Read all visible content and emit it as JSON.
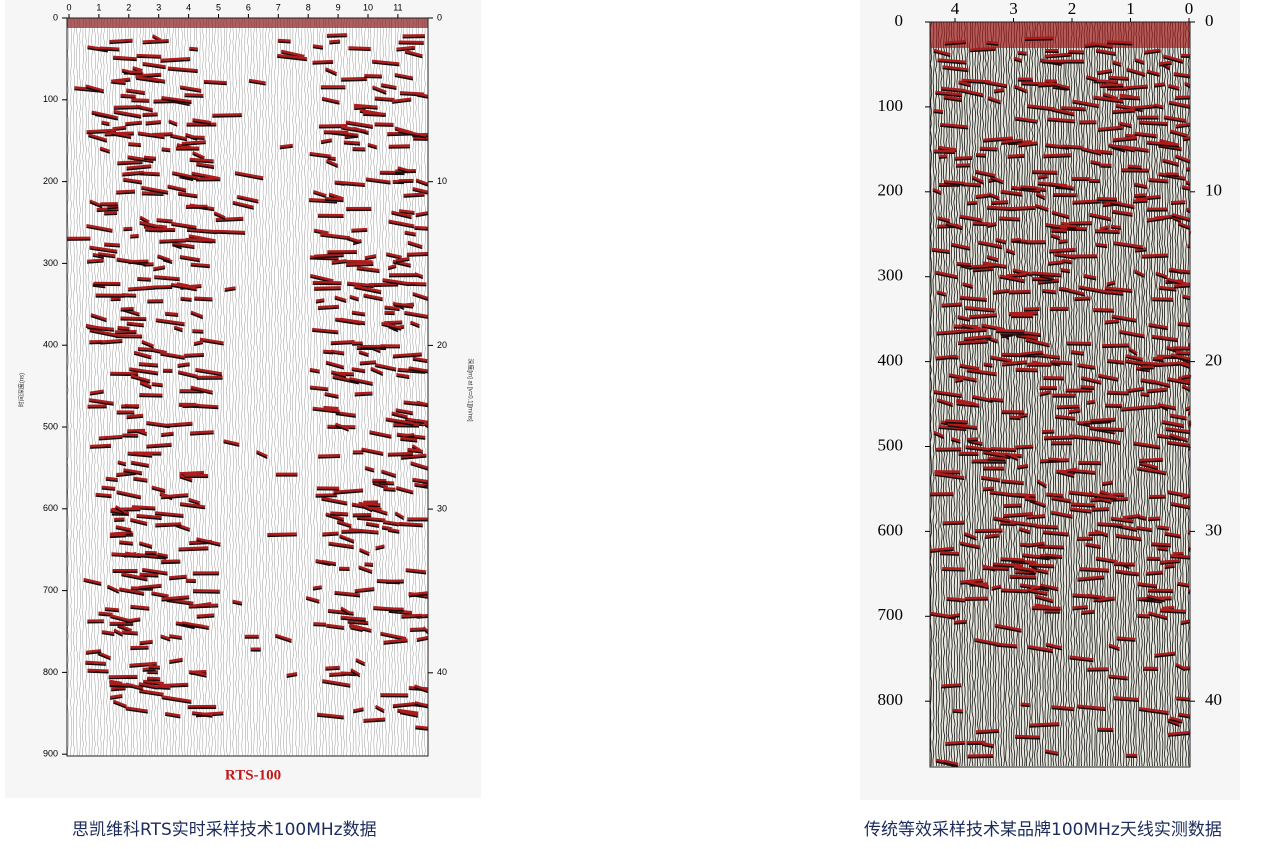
{
  "panels": [
    {
      "top_ticks": [
        "0",
        "1",
        "2",
        "3",
        "4",
        "5",
        "6",
        "7",
        "8",
        "9",
        "10",
        "11"
      ],
      "left_ticks": [
        "0",
        "100",
        "200",
        "300",
        "400",
        "500",
        "600",
        "700",
        "800",
        "900"
      ],
      "right_ticks": [
        "0",
        "10",
        "20",
        "30",
        "40"
      ],
      "left_axis_label": "时间深度(ns)",
      "right_axis_label": "深度[m] at [v=0.1][m/ns]",
      "logo": "RTS-100",
      "caption": "思凯维科RTS实时采样技术100MHz数据"
    },
    {
      "top_ticks": [
        "4",
        "3",
        "2",
        "1",
        "0"
      ],
      "left_ticks": [
        "0",
        "100",
        "200",
        "300",
        "400",
        "500",
        "600",
        "700",
        "800"
      ],
      "right_ticks": [
        "0",
        "10",
        "20",
        "30",
        "40"
      ],
      "caption": "传统等效采样技术某品牌100MHz天线实测数据"
    }
  ]
}
